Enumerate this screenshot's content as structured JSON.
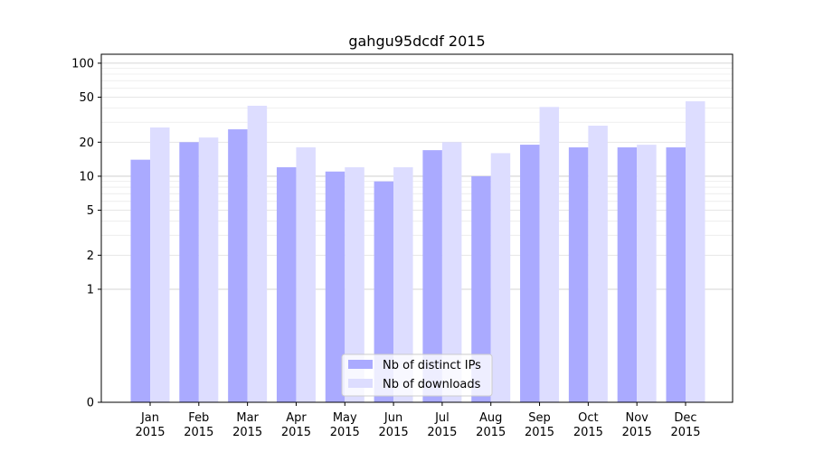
{
  "chart_data": {
    "type": "bar",
    "title": "gahgu95dcdf 2015",
    "xlabel": "",
    "ylabel": "",
    "y_scale": "symlog",
    "ylim": [
      0,
      120
    ],
    "y_ticks": [
      {
        "value": 0,
        "label": "0"
      },
      {
        "value": 1,
        "label": "1"
      },
      {
        "value": 2,
        "label": "2"
      },
      {
        "value": 5,
        "label": "5"
      },
      {
        "value": 10,
        "label": "10"
      },
      {
        "value": 20,
        "label": "20"
      },
      {
        "value": 50,
        "label": "50"
      },
      {
        "value": 100,
        "label": "100"
      }
    ],
    "categories": [
      "Jan 2015",
      "Feb 2015",
      "Mar 2015",
      "Apr 2015",
      "May 2015",
      "Jun 2015",
      "Jul 2015",
      "Aug 2015",
      "Sep 2015",
      "Oct 2015",
      "Nov 2015",
      "Dec 2015"
    ],
    "category_labels": [
      {
        "month": "Jan",
        "year": "2015"
      },
      {
        "month": "Feb",
        "year": "2015"
      },
      {
        "month": "Mar",
        "year": "2015"
      },
      {
        "month": "Apr",
        "year": "2015"
      },
      {
        "month": "May",
        "year": "2015"
      },
      {
        "month": "Jun",
        "year": "2015"
      },
      {
        "month": "Jul",
        "year": "2015"
      },
      {
        "month": "Aug",
        "year": "2015"
      },
      {
        "month": "Sep",
        "year": "2015"
      },
      {
        "month": "Oct",
        "year": "2015"
      },
      {
        "month": "Nov",
        "year": "2015"
      },
      {
        "month": "Dec",
        "year": "2015"
      }
    ],
    "series": [
      {
        "name": "Nb of distinct IPs",
        "color": "#aaaaff",
        "values": [
          14,
          20,
          26,
          12,
          11,
          9,
          17,
          10,
          19,
          18,
          18,
          18
        ]
      },
      {
        "name": "Nb of downloads",
        "color": "#ddddff",
        "values": [
          27,
          22,
          42,
          18,
          12,
          12,
          20,
          16,
          41,
          28,
          19,
          46
        ]
      }
    ],
    "grid": true,
    "legend_position": "bottom-center"
  }
}
